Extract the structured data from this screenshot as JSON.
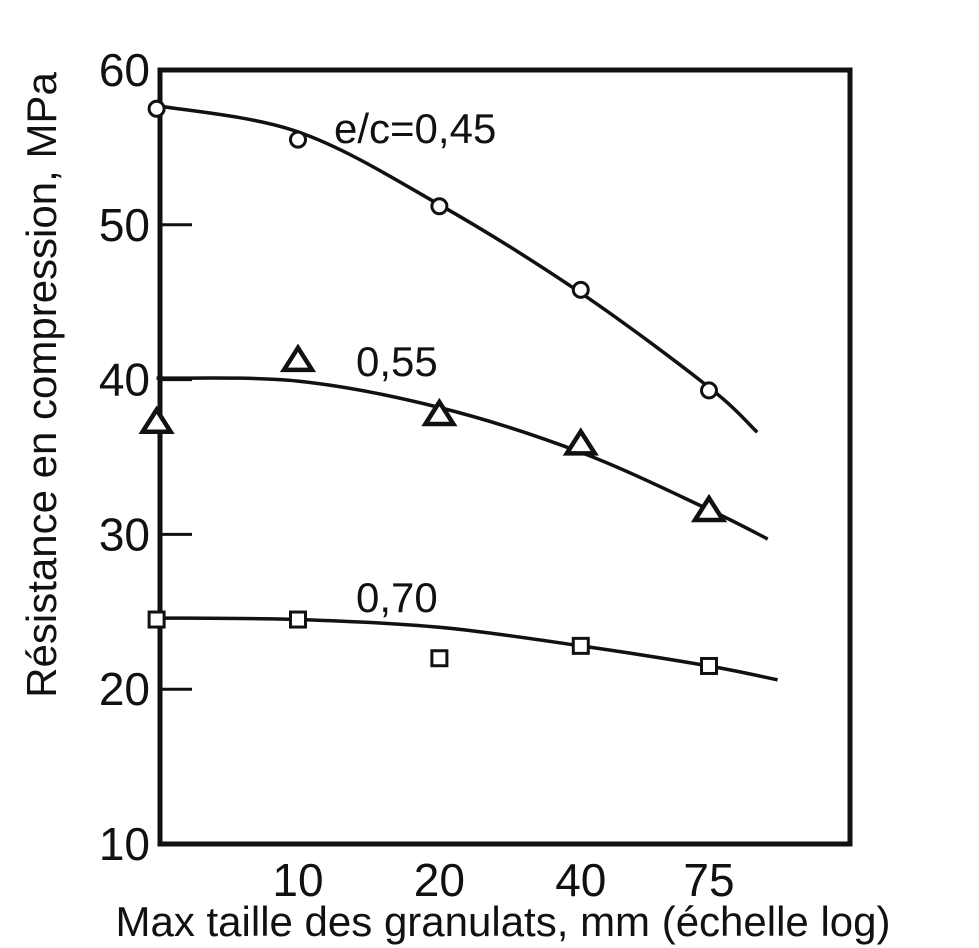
{
  "chart_data": {
    "type": "line",
    "title": "",
    "xlabel": "Max taille des granulats, mm (échelle log)",
    "ylabel": "Résistance en compression, MPa",
    "x_scale": "log",
    "x_ticks": [
      10,
      20,
      40,
      75
    ],
    "x_tick_labels": [
      "10",
      "20",
      "40",
      "75"
    ],
    "y_ticks": [
      10,
      20,
      30,
      40,
      50,
      60
    ],
    "y_tick_labels": [
      "10",
      "20",
      "30",
      "40",
      "50",
      "60"
    ],
    "ylim": [
      10,
      60
    ],
    "xlim": [
      5,
      150
    ],
    "grid": false,
    "legend": "none",
    "series": [
      {
        "name": "e/c=0,45",
        "marker": "circle",
        "points": [
          [
            5,
            57.5
          ],
          [
            10,
            55.5
          ],
          [
            20,
            51.2
          ],
          [
            40,
            45.8
          ],
          [
            75,
            39.3
          ]
        ],
        "curve": [
          [
            5,
            57.7
          ],
          [
            10,
            56.0
          ],
          [
            20,
            51.3
          ],
          [
            40,
            45.6
          ],
          [
            75,
            39.5
          ],
          [
            95,
            36.6
          ]
        ]
      },
      {
        "name": "0,55",
        "marker": "triangle",
        "points": [
          [
            5,
            37.2
          ],
          [
            10,
            41.2
          ],
          [
            20,
            37.7
          ],
          [
            40,
            35.8
          ],
          [
            75,
            31.5
          ]
        ],
        "curve": [
          [
            5,
            40.1
          ],
          [
            10,
            39.9
          ],
          [
            20,
            38.2
          ],
          [
            40,
            35.3
          ],
          [
            75,
            31.6
          ],
          [
            100,
            29.7
          ]
        ]
      },
      {
        "name": "0,70",
        "marker": "square",
        "points": [
          [
            5,
            24.5
          ],
          [
            10,
            24.5
          ],
          [
            20,
            22.0
          ],
          [
            40,
            22.8
          ],
          [
            75,
            21.5
          ]
        ],
        "curve": [
          [
            5,
            24.6
          ],
          [
            10,
            24.5
          ],
          [
            20,
            24.0
          ],
          [
            40,
            22.8
          ],
          [
            75,
            21.5
          ],
          [
            105,
            20.6
          ]
        ]
      }
    ]
  }
}
